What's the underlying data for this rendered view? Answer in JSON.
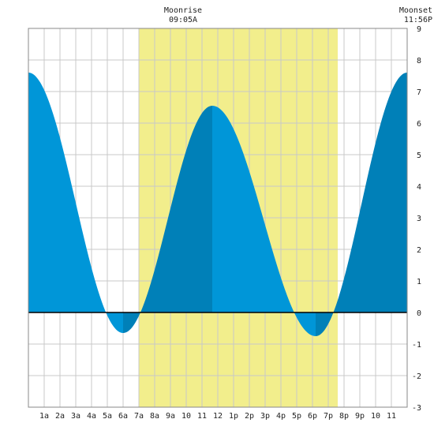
{
  "chart_data": {
    "type": "area",
    "title": "",
    "xlabel": "",
    "ylabel": "",
    "x_tick_labels": [
      "1a",
      "2a",
      "3a",
      "4a",
      "5a",
      "6a",
      "7a",
      "8a",
      "9a",
      "10",
      "11",
      "12",
      "1p",
      "2p",
      "3p",
      "4p",
      "5p",
      "6p",
      "7p",
      "8p",
      "9p",
      "10",
      "11"
    ],
    "y_ticks": [
      9,
      8,
      7,
      6,
      5,
      4,
      3,
      2,
      1,
      0,
      -1,
      -2,
      -3
    ],
    "xlim": [
      0,
      24
    ],
    "ylim": [
      -3,
      9
    ],
    "grid": true,
    "moonrise": {
      "label": "Moonrise",
      "time": "09:05A"
    },
    "moonset": {
      "label": "Moonset",
      "time": "11:56P"
    },
    "daylight_window": [
      7.0,
      19.6
    ],
    "tide_extremes": [
      {
        "x": 0.0,
        "y": 7.6
      },
      {
        "x": 6.0,
        "y": -0.65
      },
      {
        "x": 11.65,
        "y": 6.55
      },
      {
        "x": 18.2,
        "y": -0.75
      },
      {
        "x": 24.0,
        "y": 7.6
      }
    ],
    "colors": {
      "daylight": "#f2ee8c",
      "rising": "#0080b8",
      "falling": "#0096d8",
      "grid": "#c8c8c8",
      "zero_line": "#000000"
    }
  }
}
